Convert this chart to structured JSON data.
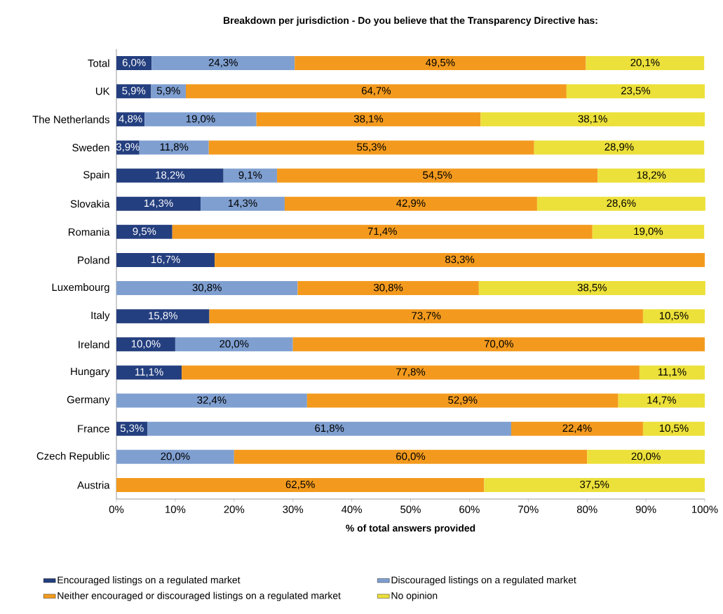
{
  "chart_data": {
    "type": "bar",
    "orientation": "horizontal",
    "stacked": true,
    "legend": "bottom",
    "title": "Breakdown per jurisdiction - Do you believe that the Transparency Directive has:",
    "xlabel": "% of total answers provided",
    "categories": [
      "Total",
      "UK",
      "The Netherlands",
      "Sweden",
      "Spain",
      "Slovakia",
      "Romania",
      "Poland",
      "Luxembourg",
      "Italy",
      "Ireland",
      "Hungary",
      "Germany",
      "France",
      "Czech Republic",
      "Austria"
    ],
    "xlim": [
      0,
      100
    ],
    "xticks": [
      {
        "value": 0,
        "label": "0%"
      },
      {
        "value": 10,
        "label": "10%"
      },
      {
        "value": 20,
        "label": "20%"
      },
      {
        "value": 30,
        "label": "30%"
      },
      {
        "value": 40,
        "label": "40%"
      },
      {
        "value": 50,
        "label": "50%"
      },
      {
        "value": 60,
        "label": "60%"
      },
      {
        "value": 70,
        "label": "70%"
      },
      {
        "value": 80,
        "label": "80%"
      },
      {
        "value": 90,
        "label": "90%"
      },
      {
        "value": 100,
        "label": "100%"
      }
    ],
    "series": [
      {
        "name": "Encouraged listings on a regulated market",
        "color": "#243f7f",
        "values": [
          6.0,
          5.9,
          4.8,
          3.9,
          18.2,
          14.3,
          9.5,
          16.7,
          null,
          15.8,
          10.0,
          11.1,
          null,
          5.3,
          null,
          null
        ],
        "value_labels": [
          "6,0%",
          "5,9%",
          "4,8%",
          "3,9%",
          "18,2%",
          "14,3%",
          "9,5%",
          "16,7%",
          null,
          "15,8%",
          "10,0%",
          "11,1%",
          null,
          "5,3%",
          null,
          null
        ]
      },
      {
        "name": "Discouraged listings on a regulated market",
        "color": "#7f9fd0",
        "values": [
          24.3,
          5.9,
          19.0,
          11.8,
          9.1,
          14.3,
          null,
          null,
          30.8,
          null,
          20.0,
          null,
          32.4,
          61.8,
          20.0,
          null
        ],
        "value_labels": [
          "24,3%",
          "5,9%",
          "19,0%",
          "11,8%",
          "9,1%",
          "14,3%",
          null,
          null,
          "30,8%",
          null,
          "20,0%",
          null,
          "32,4%",
          "61,8%",
          "20,0%",
          null
        ]
      },
      {
        "name": "Neither encouraged or discouraged listings on a regulated market",
        "color": "#f39a1e",
        "values": [
          49.5,
          64.7,
          38.1,
          55.3,
          54.5,
          42.9,
          71.4,
          83.3,
          30.8,
          73.7,
          70.0,
          77.8,
          52.9,
          22.4,
          60.0,
          62.5
        ],
        "value_labels": [
          "49,5%",
          "64,7%",
          "38,1%",
          "55,3%",
          "54,5%",
          "42,9%",
          "71,4%",
          "83,3%",
          "30,8%",
          "73,7%",
          "70,0%",
          "77,8%",
          "52,9%",
          "22,4%",
          "60,0%",
          "62,5%"
        ]
      },
      {
        "name": "No opinion",
        "color": "#ece03a",
        "values": [
          20.1,
          23.5,
          38.1,
          28.9,
          18.2,
          28.6,
          19.0,
          null,
          38.5,
          10.5,
          null,
          11.1,
          14.7,
          10.5,
          20.0,
          37.5
        ],
        "value_labels": [
          "20,1%",
          "23,5%",
          "38,1%",
          "28,9%",
          "18,2%",
          "28,6%",
          "19,0%",
          null,
          "38,5%",
          "10,5%",
          null,
          "11,1%",
          "14,7%",
          "10,5%",
          "20,0%",
          "37,5%"
        ]
      }
    ]
  }
}
